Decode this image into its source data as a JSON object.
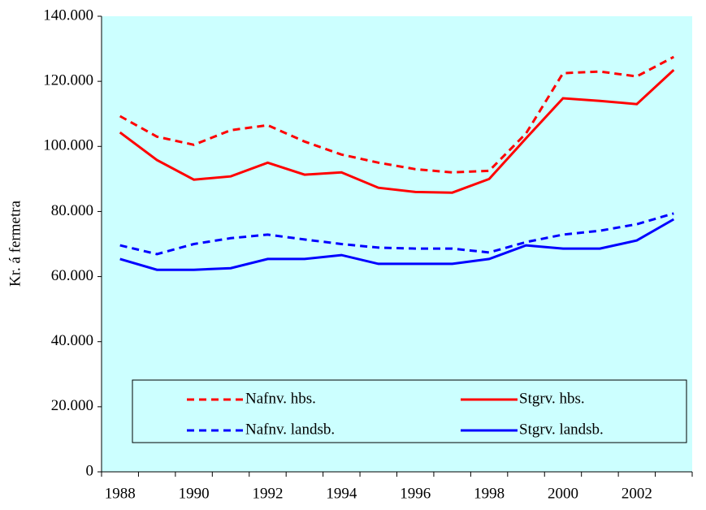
{
  "chart_data": {
    "type": "line",
    "y_label": "Kr. á fermetra",
    "categories": [
      "1988",
      null,
      "1990",
      null,
      "1992",
      null,
      "1994",
      null,
      "1996",
      null,
      "1998",
      null,
      "2000",
      null,
      "2002",
      null
    ],
    "series": [
      {
        "name": "Nafnv. hbs.",
        "color": "#ff0000",
        "dashed": true,
        "values": [
          109300,
          103000,
          100500,
          105000,
          106500,
          101500,
          97500,
          95000,
          93000,
          92000,
          92500,
          104000,
          122500,
          123000,
          121500,
          127500
        ]
      },
      {
        "name": "Stgrv. hbs.",
        "color": "#ff0000",
        "dashed": false,
        "values": [
          104300,
          95800,
          89800,
          90800,
          95000,
          91300,
          92000,
          87300,
          86000,
          85800,
          90000,
          102500,
          114800,
          114000,
          113000,
          123500
        ]
      },
      {
        "name": "Nafnv. landsb.",
        "color": "#0000ff",
        "dashed": true,
        "values": [
          69600,
          66900,
          70000,
          71800,
          72900,
          71400,
          70000,
          68900,
          68600,
          68600,
          67400,
          70600,
          72900,
          74100,
          76100,
          79400
        ]
      },
      {
        "name": "Stgrv. landsb.",
        "color": "#0000ff",
        "dashed": false,
        "values": [
          65400,
          62100,
          62100,
          62600,
          65400,
          65400,
          66600,
          63900,
          63900,
          63900,
          65400,
          69600,
          68600,
          68600,
          71100,
          77600
        ]
      }
    ],
    "ylim": [
      0,
      140000
    ],
    "yticks": [
      0,
      {
        "value": 20000,
        "label": "20.000"
      },
      {
        "value": 40000,
        "label": "40.000"
      },
      {
        "value": 60000,
        "label": "60.000"
      },
      {
        "value": 80000,
        "label": "80.000"
      },
      {
        "value": 100000,
        "label": "100.000"
      },
      {
        "value": 120000,
        "label": "120.000"
      },
      {
        "value": 140000,
        "label": "140.000"
      }
    ],
    "plot_background": "#ccffff",
    "legend": "bottom"
  }
}
